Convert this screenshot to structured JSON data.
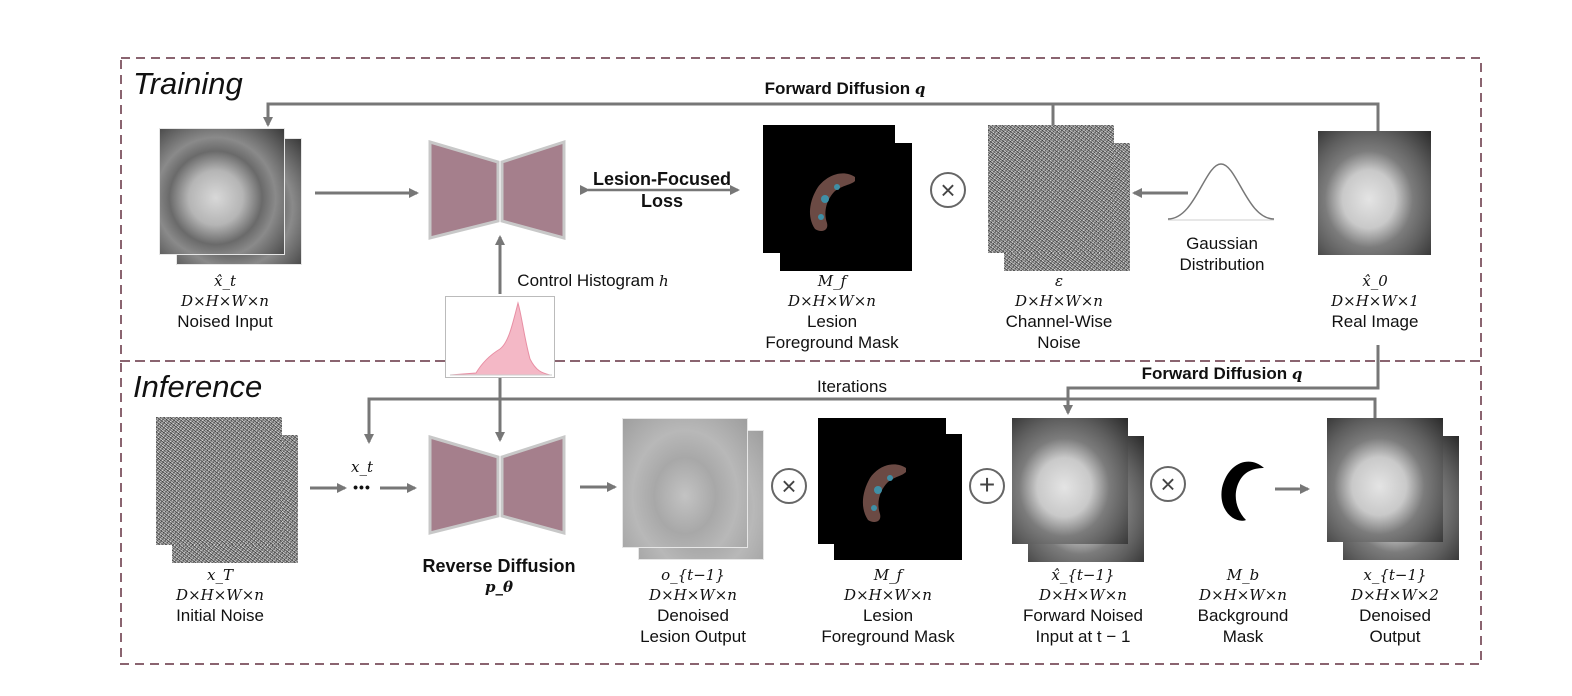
{
  "sections": {
    "training": "Training",
    "inference": "Inference"
  },
  "training": {
    "forward_diffusion": "Forward Diffusion",
    "forward_diffusion_var": "q",
    "loss_line1": "Lesion-Focused",
    "loss_line2": "Loss",
    "control_histogram": "Control Histogram",
    "control_histogram_var": "h",
    "gaussian_line1": "Gaussian",
    "gaussian_line2": "Distribution",
    "noised_input": {
      "sym": "x̂_t",
      "dims": "D×H×W×n",
      "name": "Noised Input"
    },
    "fg_mask": {
      "sym": "M_f",
      "dims": "D×H×W×n",
      "name1": "Lesion",
      "name2": "Foreground Mask"
    },
    "noise": {
      "sym": "ε",
      "dims": "D×H×W×n",
      "name1": "Channel-Wise",
      "name2": "Noise"
    },
    "real_image": {
      "sym": "x̂_0",
      "dims": "D×H×W×1",
      "name": "Real Image"
    }
  },
  "inference": {
    "iterations": "Iterations",
    "forward_diffusion": "Forward Diffusion",
    "forward_diffusion_var": "q",
    "xt": "x_t",
    "dots": "•••",
    "reverse_diffusion": "Reverse Diffusion",
    "reverse_diffusion_var": "p_θ",
    "initial_noise": {
      "sym": "x_T",
      "dims": "D×H×W×n",
      "name": "Initial Noise"
    },
    "denoised_lesion": {
      "sym": "o_{t−1}",
      "dims": "D×H×W×n",
      "name1": "Denoised",
      "name2": "Lesion Output"
    },
    "fg_mask": {
      "sym": "M_f",
      "dims": "D×H×W×n",
      "name1": "Lesion",
      "name2": "Foreground Mask"
    },
    "forward_noised": {
      "sym": "x̂_{t−1}",
      "dims": "D×H×W×n",
      "name1": "Forward Noised",
      "name2": "Input at t − 1"
    },
    "bg_mask": {
      "sym": "M_b",
      "dims": "D×H×W×n",
      "name1": "Background",
      "name2": "Mask"
    },
    "denoised_output": {
      "sym": "x_{t−1}",
      "dims": "D×H×W×2",
      "name1": "Denoised",
      "name2": "Output"
    }
  },
  "operators": {
    "multiply": "×",
    "add": "+"
  },
  "colors": {
    "network": "#a57f8c",
    "network_stroke": "#c8c8c8",
    "border": "#8a6470",
    "arrow": "#777777",
    "histogram": "#f4b8c6",
    "lesion": "#6b4a44",
    "lesion_spot": "#3f8fa6"
  }
}
